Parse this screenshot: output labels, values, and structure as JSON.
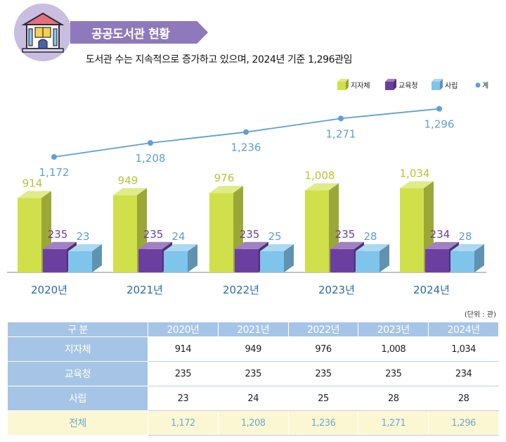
{
  "header": {
    "title": "공공도서관 현황",
    "icon": "library-building-icon"
  },
  "subtitle": "도서관 수는 지속적으로 증가하고 있으며, 2024년 기준 1,296관임",
  "unit_note": "(단위 : 관)",
  "colors": {
    "local_gov": "#cfe04a",
    "education_office": "#6b3fa0",
    "private": "#7fc4ea",
    "total_line": "#5f9fd2",
    "year_label": "#2a6ba8"
  },
  "chart_data": {
    "type": "bar",
    "categories": [
      "2020년",
      "2021년",
      "2022년",
      "2023년",
      "2024년"
    ],
    "series": [
      {
        "name": "지자체",
        "values": [
          914,
          949,
          976,
          1008,
          1034
        ],
        "labels": [
          "914",
          "949",
          "976",
          "1,008",
          "1,034"
        ]
      },
      {
        "name": "교육청",
        "values": [
          235,
          235,
          235,
          235,
          234
        ],
        "labels": [
          "235",
          "235",
          "235",
          "235",
          "234"
        ]
      },
      {
        "name": "사립",
        "values": [
          23,
          24,
          25,
          28,
          28
        ],
        "labels": [
          "23",
          "24",
          "25",
          "28",
          "28"
        ]
      },
      {
        "name": "계",
        "type": "line",
        "values": [
          1172,
          1208,
          1236,
          1271,
          1296
        ],
        "labels": [
          "1,172",
          "1,208",
          "1,236",
          "1,271",
          "1,296"
        ]
      }
    ],
    "legend_position": "top-right"
  },
  "table": {
    "header": [
      "구 분",
      "2020년",
      "2021년",
      "2022년",
      "2023년",
      "2024년"
    ],
    "rows": [
      {
        "label": "지자체",
        "values": [
          "914",
          "949",
          "976",
          "1,008",
          "1,034"
        ]
      },
      {
        "label": "교육청",
        "values": [
          "235",
          "235",
          "235",
          "235",
          "234"
        ]
      },
      {
        "label": "사립",
        "values": [
          "23",
          "24",
          "25",
          "28",
          "28"
        ]
      },
      {
        "label": "전체",
        "values": [
          "1,172",
          "1,208",
          "1,236",
          "1,271",
          "1,296"
        ]
      }
    ]
  }
}
